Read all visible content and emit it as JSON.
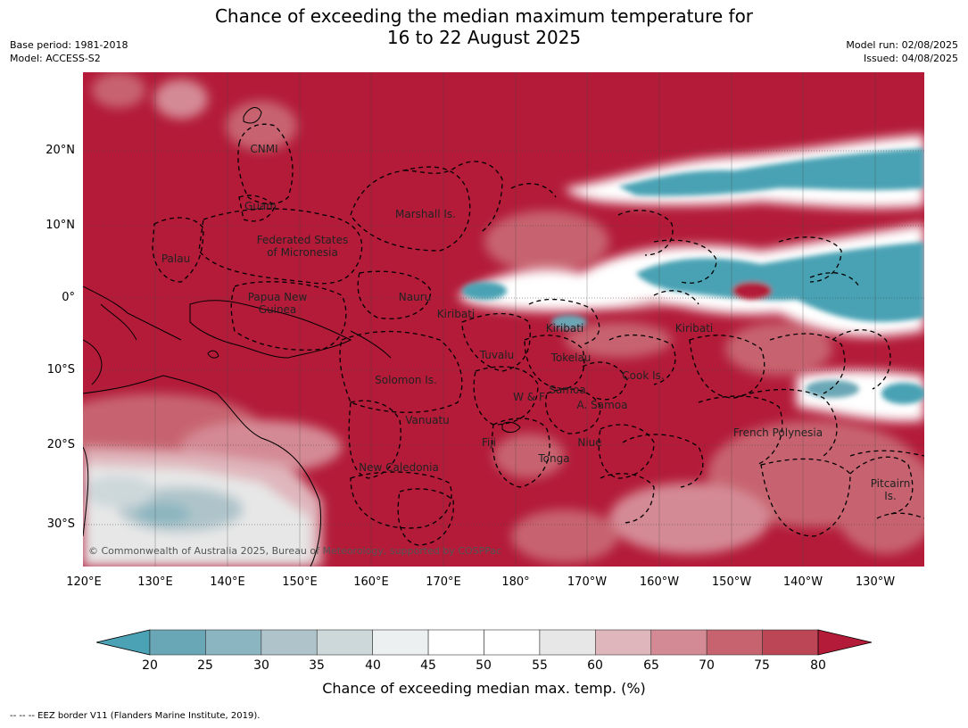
{
  "header": {
    "title_line1": "Chance of exceeding the median maximum temperature for",
    "title_line2": "16 to 22 August 2025",
    "base_period": "Base period: 1981-2018",
    "model": "Model: ACCESS-S2",
    "model_run": "Model run: 02/08/2025",
    "issued": "Issued: 04/08/2025"
  },
  "map": {
    "lat_labels": [
      "20°N",
      "10°N",
      "0°",
      "10°S",
      "20°S",
      "30°S"
    ],
    "lon_labels": [
      "120°E",
      "130°E",
      "140°E",
      "150°E",
      "160°E",
      "170°E",
      "180°",
      "170°W",
      "160°W",
      "150°W",
      "140°W",
      "130°W"
    ],
    "region_labels": {
      "cnmi": "CNMI",
      "guam": "Guam",
      "marshall": "Marshall Is.",
      "fsm_line1": "Federated States",
      "fsm_line2": "of Micronesia",
      "palau": "Palau",
      "nauru": "Nauru",
      "png_line1": "Papua New",
      "png_line2": "Guinea",
      "kiribati_w": "Kiribati",
      "kiribati_c": "Kiribati",
      "kiribati_e": "Kiribati",
      "tuvalu": "Tuvalu",
      "tokelau": "Tokelau",
      "cook": "Cook Is.",
      "solomon": "Solomon Is.",
      "wf": "W & F",
      "samoa": "Samoa",
      "asamoa": "A. Samoa",
      "vanuatu": "Vanuatu",
      "fiji": "Fiji",
      "niue": "Niue",
      "french_poly": "French Polynesia",
      "tonga": "Tonga",
      "newcal": "New Caledonia",
      "pitcairn_line1": "Pitcairn",
      "pitcairn_line2": "Is."
    },
    "copyright": "© Commonwealth of Australia 2025, Bureau of Meteorology, supported by COSPPac"
  },
  "colorbar": {
    "ticks": [
      "20",
      "25",
      "30",
      "35",
      "40",
      "45",
      "50",
      "55",
      "60",
      "65",
      "70",
      "75",
      "80"
    ],
    "colors": [
      "#4aa2b4",
      "#6aa7b6",
      "#8bb5c0",
      "#aec4ca",
      "#cdd8da",
      "#ecf0f1",
      "#ffffff",
      "#ffffff",
      "#e7e7e7",
      "#dfb6bb",
      "#d48a95",
      "#c7636f",
      "#bc4656",
      "#b31b39"
    ],
    "label": "Chance of exceeding median max. temp. (%)"
  },
  "footnote": "--  --  -- EEZ border V11 (Flanders Marine Institute, 2019)."
}
